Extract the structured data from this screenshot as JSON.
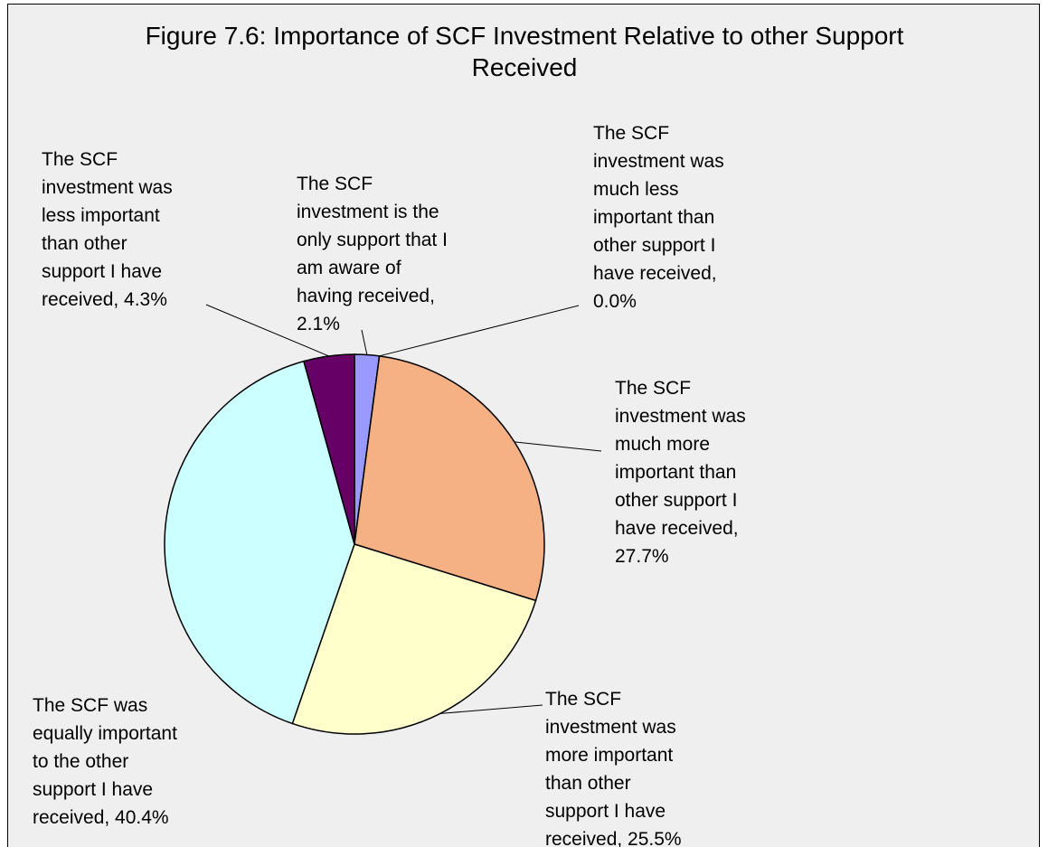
{
  "chart_data": {
    "type": "pie",
    "title": "Figure 7.6: Importance of SCF Investment Relative to other Support Received",
    "values": [
      2.1,
      0.0,
      27.7,
      25.5,
      40.4,
      4.3
    ],
    "value_labels": [
      "The SCF investment is the only support that I am aware of having received, 2.1%",
      "The SCF investment was much less important than other support I have received, 0.0%",
      "The SCF investment was much more important than other support I have received, 27.7%",
      "The SCF investment was more important than other support I have received, 25.5%",
      "The SCF was equally important to the other support I have received, 40.4%",
      "The SCF investment was less important than other support I have received, 4.3%"
    ],
    "colors": [
      "#9999ff",
      "#993366",
      "#f5b084",
      "#ffffcc",
      "#ccffff",
      "#660066"
    ]
  }
}
